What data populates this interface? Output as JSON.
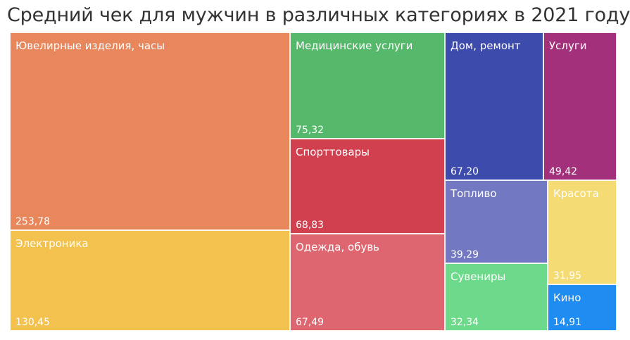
{
  "title": "Средний чек для мужчин в различных категориях в 2021 году",
  "chart_data": {
    "type": "treemap",
    "title": "Средний чек для мужчин в различных категориях в 2021 году",
    "items": [
      {
        "label": "Ювелирные изделия, часы",
        "value_label": "253,78",
        "value": 253.78,
        "color": "#E8865C"
      },
      {
        "label": "Электроника",
        "value_label": "130,45",
        "value": 130.45,
        "color": "#F2C14E"
      },
      {
        "label": "Медицинские услуги",
        "value_label": "75,32",
        "value": 75.32,
        "color": "#55B86A"
      },
      {
        "label": "Спорттовары",
        "value_label": "68,83",
        "value": 68.83,
        "color": "#D0404F"
      },
      {
        "label": "Одежда, обувь",
        "value_label": "67,49",
        "value": 67.49,
        "color": "#DE6670"
      },
      {
        "label": "Дом, ремонт",
        "value_label": "67,20",
        "value": 67.2,
        "color": "#3D4BAD"
      },
      {
        "label": "Услуги",
        "value_label": "49,42",
        "value": 49.42,
        "color": "#A3307A"
      },
      {
        "label": "Топливо",
        "value_label": "39,29",
        "value": 39.29,
        "color": "#7279C2"
      },
      {
        "label": "Красота",
        "value_label": "31,95",
        "value": 31.95,
        "color": "#F5DB73"
      },
      {
        "label": "Сувениры",
        "value_label": "32,34",
        "value": 32.34,
        "color": "#6DD98A"
      },
      {
        "label": "Кино",
        "value_label": "14,91",
        "value": 14.91,
        "color": "#1E8CF0"
      }
    ]
  }
}
